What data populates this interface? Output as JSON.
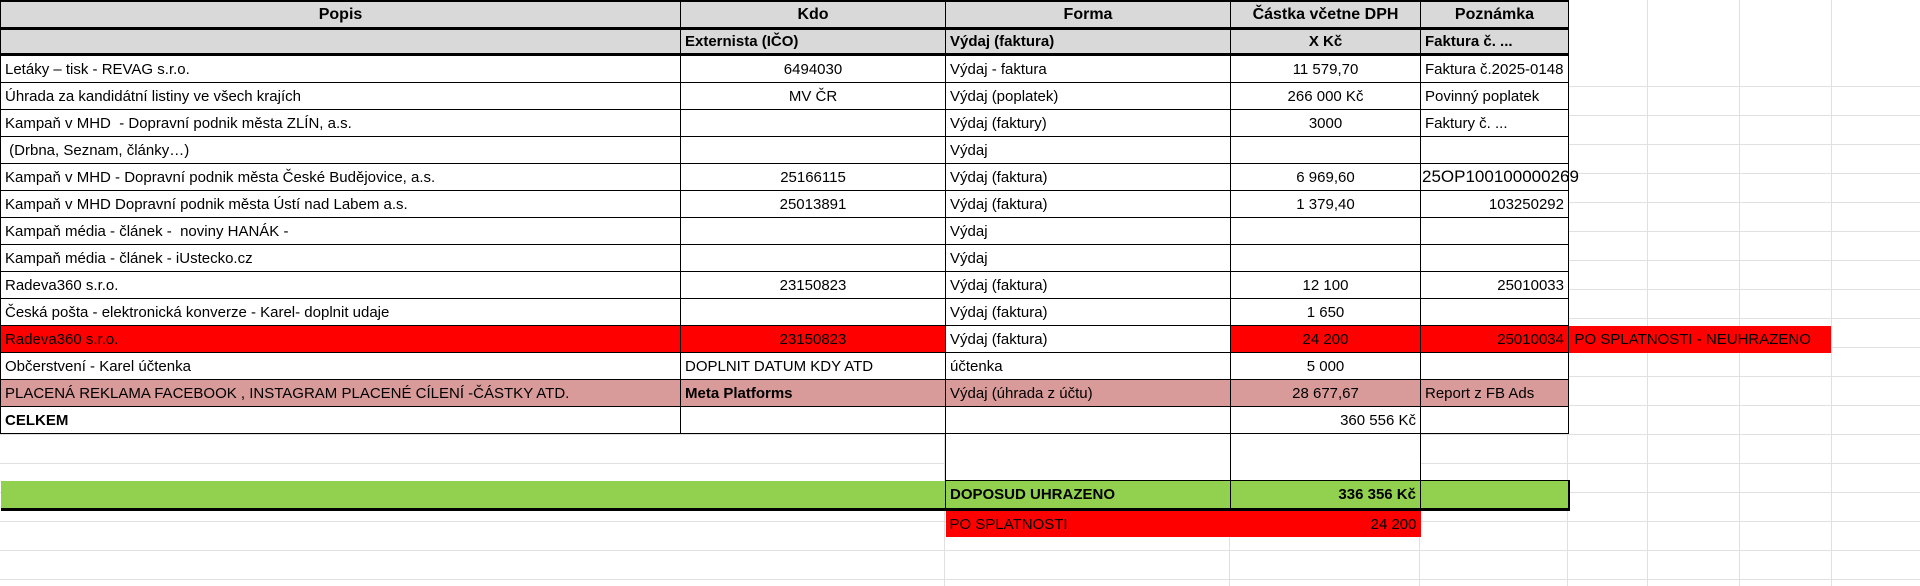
{
  "columns": [
    {
      "label": "Popis",
      "sub": ""
    },
    {
      "label": "Kdo",
      "sub": "Externista (IČO)"
    },
    {
      "label": "Forma",
      "sub": "Výdaj (faktura)"
    },
    {
      "label": "Částka včetne DPH",
      "sub": "X Kč"
    },
    {
      "label": "Poznámka",
      "sub": "Faktura č. ..."
    }
  ],
  "rows": [
    {
      "popis": "Letáky – tisk - REVAG s.r.o.",
      "kdo": "6494030",
      "forma": "Výdaj - faktura",
      "castka": "11 579,70",
      "poznamka": "Faktura č.2025-0148",
      "style": "plain"
    },
    {
      "popis": "Úhrada za kandidátní listiny ve všech krajích",
      "kdo": "MV ČR",
      "forma": "Výdaj (poplatek)",
      "castka": "266 000 Kč",
      "poznamka": "Povinný poplatek",
      "style": "plain"
    },
    {
      "popis": "Kampaň v MHD  - Dopravní podnik města ZLÍN, a.s.",
      "kdo": "",
      "forma": "Výdaj (faktury)",
      "castka": "3000",
      "poznamka": "Faktury č. ...",
      "style": "plain"
    },
    {
      "popis": " (Drbna, Seznam, články…)",
      "kdo": "",
      "forma": "Výdaj",
      "castka": "",
      "poznamka": "",
      "style": "plain"
    },
    {
      "popis": "Kampaň v MHD - Dopravní podnik města České Budějovice, a.s.",
      "kdo": "25166115",
      "forma": "Výdaj (faktura)",
      "castka": "6 969,60",
      "poznamka": "25OP100100000269",
      "style": "plain",
      "pozBig": true
    },
    {
      "popis": "Kampaň v MHD Dopravní podnik města Ústí nad Labem a.s.",
      "kdo": "25013891",
      "forma": "Výdaj (faktura)",
      "castka": "1 379,40",
      "poznamka": "103250292",
      "style": "plain",
      "pozAlign": "right"
    },
    {
      "popis": "Kampaň média - článek -  noviny HANÁK -",
      "kdo": "",
      "forma": "Výdaj",
      "castka": "",
      "poznamka": "",
      "style": "plain"
    },
    {
      "popis": "Kampaň média - článek - iUstecko.cz",
      "kdo": "",
      "forma": "Výdaj",
      "castka": "",
      "poznamka": "",
      "style": "plain"
    },
    {
      "popis": "Radeva360 s.r.o.",
      "kdo": "23150823",
      "forma": "Výdaj (faktura)",
      "castka": "12 100",
      "poznamka": "25010033",
      "style": "plain",
      "pozAlign": "right"
    },
    {
      "popis": "Česká pošta - elektronická konverze - Karel- doplnit udaje",
      "kdo": "",
      "forma": "Výdaj (faktura)",
      "castka": "1 650",
      "poznamka": "",
      "style": "plain"
    },
    {
      "popis": "Radeva360 s.r.o.",
      "kdo": "23150823",
      "forma": "Výdaj (faktura)",
      "castka": "24 200",
      "poznamka": "25010034",
      "style": "red",
      "pozAlign": "right"
    },
    {
      "popis": "Občerstvení - Karel účtenka",
      "kdo": "DOPLNIT DATUM KDY ATD",
      "forma": "účtenka",
      "castka": "5 000",
      "poznamka": "",
      "style": "plain",
      "kdoAlign": "left"
    },
    {
      "popis": "PLACENÁ REKLAMA FACEBOOK , INSTAGRAM PLACENÉ CÍLENÍ -ČÁSTKY ATD.",
      "kdo": "Meta Platforms",
      "forma": "Výdaj (úhrada z účtu)",
      "castka": "28 677,67",
      "poznamka": "Report z FB Ads",
      "style": "pink",
      "kdoAlign": "left",
      "kdoBold": true
    },
    {
      "popis": "CELKEM",
      "kdo": "",
      "forma": "",
      "castka": "360 556 Kč",
      "poznamka": "",
      "style": "total",
      "popisBold": true,
      "castkaAlign": "right"
    }
  ],
  "summary": {
    "doposud_label": "DOPOSUD UHRAZENO",
    "doposud_value": "336 356 Kč",
    "po_splatnosti_label": "PO SPLATNOSTI",
    "po_splatnosti_value": "24 200",
    "annotation": "PO SPLATNOSTI - NEUHRAZENO"
  },
  "colors": {
    "header_bg": "#d9d9d9",
    "row_red": "#ff0000",
    "row_pink": "#d89b99",
    "row_green": "#92d050",
    "faint_grid": "#e0e0e0"
  }
}
